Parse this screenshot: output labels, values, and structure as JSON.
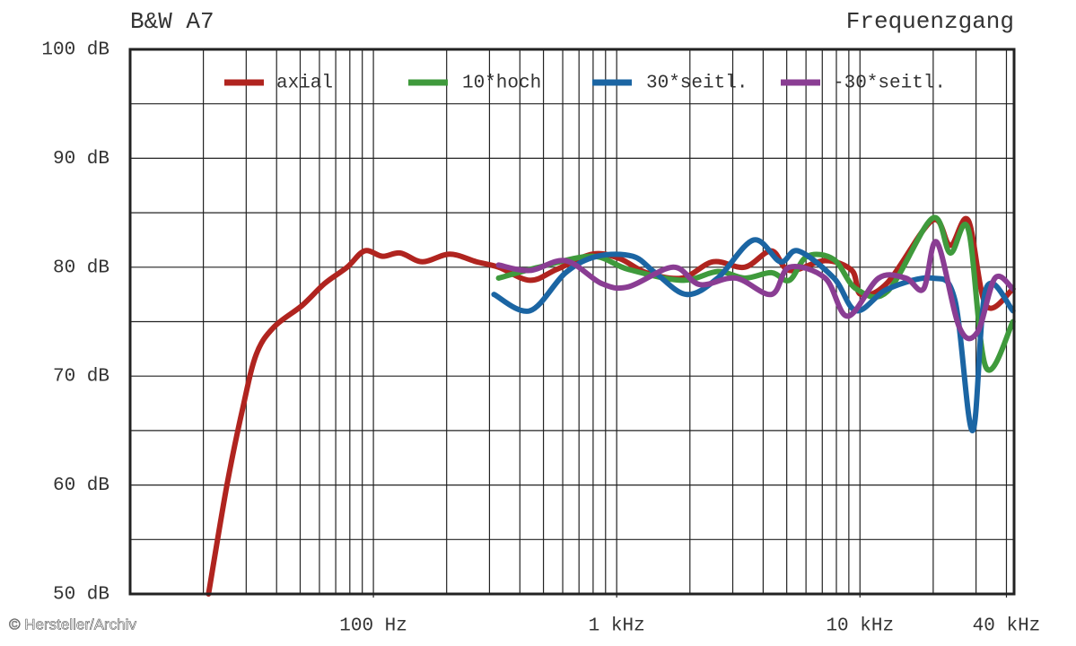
{
  "chart_data": {
    "type": "line",
    "title": "B&W A7",
    "subtitle": "Frequenzgang",
    "credit": "© Hersteller/Archiv",
    "xscale": "log",
    "xlim": [
      10,
      43000
    ],
    "ylim": [
      50,
      100
    ],
    "xticks": [
      {
        "value": 100,
        "label": "100 Hz"
      },
      {
        "value": 1000,
        "label": "1 kHz"
      },
      {
        "value": 10000,
        "label": "10 kHz"
      },
      {
        "value": 40000,
        "label": "40 kHz"
      }
    ],
    "xgrid": [
      20,
      30,
      40,
      50,
      60,
      70,
      80,
      90,
      100,
      200,
      300,
      400,
      500,
      600,
      700,
      800,
      900,
      1000,
      2000,
      3000,
      4000,
      5000,
      6000,
      7000,
      8000,
      9000,
      10000,
      20000,
      30000,
      40000
    ],
    "yticks": [
      {
        "value": 50,
        "label": "50 dB"
      },
      {
        "value": 60,
        "label": "60 dB"
      },
      {
        "value": 70,
        "label": "70 dB"
      },
      {
        "value": 80,
        "label": "80 dB"
      },
      {
        "value": 90,
        "label": "90 dB"
      },
      {
        "value": 100,
        "label": "100 dB"
      }
    ],
    "ygrid": [
      55,
      65,
      75,
      85,
      95
    ],
    "grid": true,
    "series": [
      {
        "name": "axial",
        "color": "#b0241f",
        "x": [
          21,
          25,
          29,
          33,
          39,
          51,
          63,
          78,
          92,
          109,
          129,
          159,
          206,
          265,
          327,
          440,
          567,
          796,
          1026,
          1321,
          1854,
          2494,
          3356,
          4325,
          5128,
          7194,
          9268,
          10090,
          13000,
          19860,
          23500,
          27860,
          32960,
          42550
        ],
        "values": [
          50,
          60,
          67,
          72,
          74.5,
          76.5,
          78.5,
          80,
          81.5,
          81,
          81.3,
          80.5,
          81.2,
          80.5,
          80,
          78.8,
          79.8,
          81.2,
          80.8,
          79.5,
          79,
          80.5,
          80,
          81.5,
          79.7,
          80.6,
          79.7,
          77.5,
          78.6,
          84.3,
          82,
          84.3,
          76.5,
          78
        ]
      },
      {
        "name": "10*hoch",
        "color": "#3f9a3c",
        "x": [
          327,
          479,
          796,
          1117,
          1854,
          2601,
          3356,
          4325,
          5128,
          6067,
          7816,
          9663,
          13000,
          19860,
          23500,
          27860,
          32960,
          42550
        ],
        "values": [
          79,
          80,
          81,
          79.8,
          78.8,
          79.6,
          79,
          79.5,
          78.8,
          81,
          80.7,
          78,
          77.8,
          84.5,
          81.3,
          83.5,
          70.8,
          75
        ]
      },
      {
        "name": "30*seitl.",
        "color": "#1b65a3",
        "x": [
          313,
          440,
          617,
          830,
          1165,
          1439,
          1936,
          2601,
          3655,
          4709,
          5572,
          7816,
          9663,
          13000,
          19860,
          24550,
          29040,
          32960,
          42550
        ],
        "values": [
          77.5,
          76,
          79.5,
          81,
          81,
          79.5,
          77.5,
          79,
          82.5,
          80.5,
          81.5,
          79,
          76,
          78,
          79,
          77,
          65,
          78,
          76
        ]
      },
      {
        "name": "-30*seitl.",
        "color": "#8a3d93",
        "x": [
          327,
          440,
          617,
          867,
          1117,
          1706,
          2198,
          3083,
          4325,
          5128,
          7194,
          8892,
          11940,
          15410,
          18240,
          20700,
          25600,
          30340,
          35890,
          42550
        ],
        "values": [
          80.2,
          79.7,
          80.6,
          78.5,
          78.2,
          80,
          78.4,
          79,
          77.5,
          80,
          79,
          75.5,
          79,
          79,
          78,
          82.3,
          74.5,
          74,
          79,
          78
        ]
      }
    ]
  }
}
